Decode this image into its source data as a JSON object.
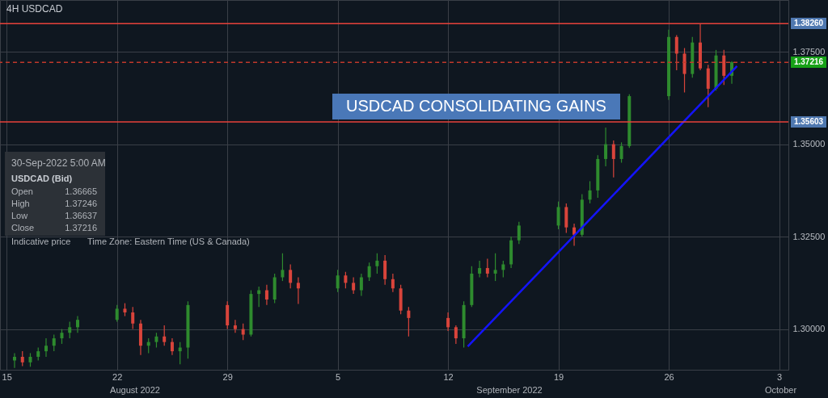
{
  "chart_data": {
    "type": "candlestick",
    "title": "4H    USDCAD",
    "annotations": [
      "USDCAD CONSOLIDATING GAINS",
      "30-Sep-2022 5:00 AM",
      "USDCAD (Bid)",
      "Open",
      "1.36665",
      "High",
      "1.37246",
      "Low",
      "1.36637",
      "Close",
      "1.37216",
      "Indicative price",
      "Time Zone: Eastern Time (US & Canada)",
      "August 2022",
      "September 2022",
      "October"
    ],
    "x": [
      "2022-08-15T12:00",
      "2022-08-16T00:00",
      "2022-08-16T12:00",
      "2022-08-17T00:00",
      "2022-08-17T12:00",
      "2022-08-18T00:00",
      "2022-08-18T12:00",
      "2022-08-19T00:00",
      "2022-08-19T12:00",
      "2022-08-22T00:00",
      "2022-08-22T12:00",
      "2022-08-23T00:00",
      "2022-08-23T12:00",
      "2022-08-24T00:00",
      "2022-08-24T12:00",
      "2022-08-25T00:00",
      "2022-08-25T12:00",
      "2022-08-26T00:00",
      "2022-08-26T12:00",
      "2022-08-29T00:00",
      "2022-08-29T12:00",
      "2022-08-30T00:00",
      "2022-08-30T12:00",
      "2022-08-31T00:00",
      "2022-08-31T12:00",
      "2022-09-01T00:00",
      "2022-09-01T12:00",
      "2022-09-02T00:00",
      "2022-09-02T12:00",
      "2022-09-05T00:00",
      "2022-09-05T12:00",
      "2022-09-06T00:00",
      "2022-09-06T12:00",
      "2022-09-07T00:00",
      "2022-09-07T12:00",
      "2022-09-08T00:00",
      "2022-09-08T12:00",
      "2022-09-09T00:00",
      "2022-09-09T12:00",
      "2022-09-12T00:00",
      "2022-09-12T12:00",
      "2022-09-13T00:00",
      "2022-09-13T12:00",
      "2022-09-14T00:00",
      "2022-09-14T12:00",
      "2022-09-15T00:00",
      "2022-09-15T12:00",
      "2022-09-16T00:00",
      "2022-09-16T12:00",
      "2022-09-19T00:00",
      "2022-09-19T12:00",
      "2022-09-20T00:00",
      "2022-09-20T12:00",
      "2022-09-21T00:00",
      "2022-09-21T12:00",
      "2022-09-22T00:00",
      "2022-09-22T12:00",
      "2022-09-23T00:00",
      "2022-09-23T12:00",
      "2022-09-26T00:00",
      "2022-09-26T12:00",
      "2022-09-27T00:00",
      "2022-09-27T12:00",
      "2022-09-28T00:00",
      "2022-09-28T12:00",
      "2022-09-29T00:00",
      "2022-09-29T12:00",
      "2022-09-30T00:00"
    ],
    "ohlc": [
      [
        1.2915,
        1.2935,
        1.2895,
        1.2925
      ],
      [
        1.2925,
        1.294,
        1.29,
        1.291
      ],
      [
        1.291,
        1.2935,
        1.2898,
        1.2925
      ],
      [
        1.2925,
        1.295,
        1.2915,
        1.294
      ],
      [
        1.294,
        1.2975,
        1.2925,
        1.2955
      ],
      [
        1.2955,
        1.2985,
        1.294,
        1.2975
      ],
      [
        1.2975,
        1.3,
        1.296,
        1.299
      ],
      [
        1.299,
        1.302,
        1.2975,
        1.3005
      ],
      [
        1.3005,
        1.3035,
        1.299,
        1.3025
      ],
      [
        1.3025,
        1.3065,
        1.302,
        1.3055
      ],
      [
        1.3055,
        1.307,
        1.3035,
        1.3045
      ],
      [
        1.3045,
        1.306,
        1.3,
        1.3015
      ],
      [
        1.3015,
        1.3025,
        1.293,
        1.2955
      ],
      [
        1.2955,
        1.2975,
        1.2935,
        1.2965
      ],
      [
        1.2965,
        1.299,
        1.295,
        1.298
      ],
      [
        1.298,
        1.301,
        1.2955,
        1.2965
      ],
      [
        1.2965,
        1.2975,
        1.293,
        1.294
      ],
      [
        1.294,
        1.2965,
        1.2905,
        1.295
      ],
      [
        1.295,
        1.3075,
        1.292,
        1.3065
      ],
      [
        1.3065,
        1.3075,
        1.3,
        1.301
      ],
      [
        1.301,
        1.3025,
        1.299,
        1.3
      ],
      [
        1.3,
        1.3015,
        1.297,
        1.2985
      ],
      [
        1.2985,
        1.3105,
        1.298,
        1.3095
      ],
      [
        1.3095,
        1.3115,
        1.306,
        1.3105
      ],
      [
        1.3105,
        1.312,
        1.3065,
        1.308
      ],
      [
        1.308,
        1.315,
        1.307,
        1.314
      ],
      [
        1.314,
        1.3205,
        1.313,
        1.316
      ],
      [
        1.316,
        1.3175,
        1.311,
        1.3125
      ],
      [
        1.3125,
        1.314,
        1.3068,
        1.311
      ],
      [
        1.311,
        1.316,
        1.31,
        1.3145
      ],
      [
        1.3145,
        1.3155,
        1.311,
        1.3125
      ],
      [
        1.3125,
        1.314,
        1.3095,
        1.3105
      ],
      [
        1.3105,
        1.315,
        1.309,
        1.314
      ],
      [
        1.314,
        1.318,
        1.313,
        1.317
      ],
      [
        1.317,
        1.3205,
        1.315,
        1.3185
      ],
      [
        1.3185,
        1.32,
        1.312,
        1.3135
      ],
      [
        1.3135,
        1.315,
        1.31,
        1.311
      ],
      [
        1.311,
        1.312,
        1.304,
        1.305
      ],
      [
        1.305,
        1.306,
        1.298,
        1.303
      ],
      [
        1.303,
        1.3045,
        1.2995,
        1.3005
      ],
      [
        1.3005,
        1.301,
        1.296,
        1.2975
      ],
      [
        1.2975,
        1.3075,
        1.295,
        1.3065
      ],
      [
        1.3065,
        1.317,
        1.306,
        1.315
      ],
      [
        1.315,
        1.3185,
        1.314,
        1.3165
      ],
      [
        1.3165,
        1.319,
        1.314,
        1.315
      ],
      [
        1.315,
        1.3205,
        1.313,
        1.316
      ],
      [
        1.316,
        1.3185,
        1.314,
        1.3175
      ],
      [
        1.3175,
        1.325,
        1.3165,
        1.324
      ],
      [
        1.324,
        1.329,
        1.323,
        1.328
      ],
      [
        1.328,
        1.3345,
        1.327,
        1.333
      ],
      [
        1.333,
        1.334,
        1.326,
        1.3275
      ],
      [
        1.3275,
        1.3285,
        1.3225,
        1.3255
      ],
      [
        1.3255,
        1.3365,
        1.325,
        1.335
      ],
      [
        1.335,
        1.34,
        1.334,
        1.3375
      ],
      [
        1.3375,
        1.347,
        1.3355,
        1.346
      ],
      [
        1.346,
        1.3545,
        1.344,
        1.35
      ],
      [
        1.35,
        1.351,
        1.341,
        1.346
      ],
      [
        1.346,
        1.3505,
        1.345,
        1.3495
      ],
      [
        1.3495,
        1.3635,
        1.349,
        1.363
      ],
      [
        1.363,
        1.381,
        1.362,
        1.379
      ],
      [
        1.379,
        1.3795,
        1.37,
        1.3745
      ],
      [
        1.3745,
        1.376,
        1.364,
        1.369
      ],
      [
        1.369,
        1.379,
        1.368,
        1.3775
      ],
      [
        1.3775,
        1.3826,
        1.37,
        1.3705
      ],
      [
        1.3705,
        1.3715,
        1.36,
        1.365
      ],
      [
        1.365,
        1.3755,
        1.3645,
        1.374
      ],
      [
        1.374,
        1.3755,
        1.366,
        1.3685
      ],
      [
        1.3685,
        1.37246,
        1.36637,
        1.37216
      ]
    ],
    "colors": [
      "#2e8b2e",
      "#d9443b",
      "#2e8b2e",
      "#2e8b2e",
      "#2e8b2e",
      "#2e8b2e",
      "#2e8b2e",
      "#2e8b2e",
      "#2e8b2e",
      "#2e8b2e",
      "#d9443b",
      "#d9443b",
      "#d9443b",
      "#2e8b2e",
      "#2e8b2e",
      "#d9443b",
      "#d9443b",
      "#2e8b2e",
      "#2e8b2e",
      "#d9443b",
      "#d9443b",
      "#d9443b",
      "#2e8b2e",
      "#2e8b2e",
      "#d9443b",
      "#2e8b2e",
      "#2e8b2e",
      "#d9443b",
      "#d9443b",
      "#2e8b2e",
      "#d9443b",
      "#d9443b",
      "#2e8b2e",
      "#2e8b2e",
      "#2e8b2e",
      "#d9443b",
      "#d9443b",
      "#d9443b",
      "#d9443b",
      "#d9443b",
      "#d9443b",
      "#2e8b2e",
      "#2e8b2e",
      "#2e8b2e",
      "#d9443b",
      "#2e8b2e",
      "#2e8b2e",
      "#2e8b2e",
      "#2e8b2e",
      "#2e8b2e",
      "#d9443b",
      "#d9443b",
      "#2e8b2e",
      "#2e8b2e",
      "#2e8b2e",
      "#2e8b2e",
      "#d9443b",
      "#2e8b2e",
      "#2e8b2e",
      "#2e8b2e",
      "#d9443b",
      "#d9443b",
      "#2e8b2e",
      "#d9443b",
      "#d9443b",
      "#2e8b2e",
      "#d9443b",
      "#2e8b2e"
    ],
    "series": [
      {
        "type": "line",
        "x": [
          "2022-09-13T06:00",
          "2022-09-30T08:00"
        ],
        "values": [
          1.2953,
          1.3711
        ],
        "color": "#1414ff"
      }
    ],
    "ref_lines": [
      {
        "axis": "y",
        "value": 1.3826,
        "label": "1.38260",
        "color": "#e8423a"
      },
      {
        "axis": "y",
        "value": 1.37216,
        "label": "1.37216",
        "color": "#c0392b",
        "line_style": "dashed"
      },
      {
        "axis": "y",
        "value": 1.35603,
        "label": "1.35603",
        "color": "#e8423a"
      }
    ],
    "xlim": [
      "2022-08-14T20:00",
      "2022-10-03T08:00"
    ],
    "xticks": [
      {
        "value": "2022-08-15",
        "label": "15"
      },
      {
        "value": "2022-08-22",
        "label": "22"
      },
      {
        "value": "2022-08-29",
        "label": "29"
      },
      {
        "value": "2022-09-05",
        "label": "5"
      },
      {
        "value": "2022-09-12",
        "label": "12"
      },
      {
        "value": "2022-09-19",
        "label": "19"
      },
      {
        "value": "2022-09-26",
        "label": "26"
      },
      {
        "value": "2022-10-03",
        "label": "3"
      }
    ],
    "ylim": [
      1.289,
      1.389
    ],
    "yticks": [
      {
        "value": 1.3,
        "label": "1.30000"
      },
      {
        "value": 1.325,
        "label": "1.32500"
      },
      {
        "value": 1.35,
        "label": "1.35000"
      },
      {
        "value": 1.375,
        "label": "1.37500"
      }
    ],
    "grid": true
  }
}
